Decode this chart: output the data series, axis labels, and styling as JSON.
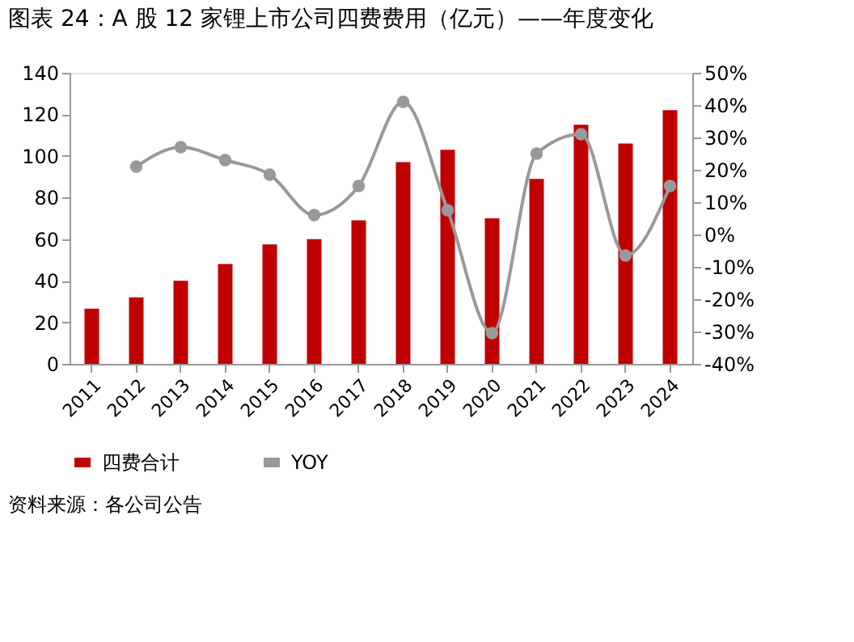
{
  "chart_data": {
    "type": "bar",
    "title": "图表 24：A 股 12 家锂上市公司四费费用（亿元）——年度变化",
    "categories": [
      "2011",
      "2012",
      "2013",
      "2014",
      "2015",
      "2016",
      "2017",
      "2018",
      "2019",
      "2020",
      "2021",
      "2022",
      "2023",
      "2024"
    ],
    "series": [
      {
        "name": "四费合计",
        "color": "#c00000",
        "values": [
          26.5,
          32,
          40,
          48,
          57.5,
          60,
          69,
          97,
          103,
          70,
          89,
          115,
          106,
          122
        ]
      },
      {
        "name": "YOY",
        "type": "line",
        "axis": "y2",
        "color": "#999999",
        "marker": "circle",
        "values": [
          null,
          21,
          27,
          23,
          18.5,
          6,
          15,
          41,
          7.5,
          -30.5,
          25,
          31,
          -6.5,
          15
        ]
      }
    ],
    "ylim": [
      0,
      140
    ],
    "yticks": [
      0,
      20,
      40,
      60,
      80,
      100,
      120,
      140
    ],
    "y2lim": [
      -40,
      50
    ],
    "y2ticks": [
      {
        "value": -40,
        "label": "-40%"
      },
      {
        "value": -30,
        "label": "-30%"
      },
      {
        "value": -20,
        "label": "-20%"
      },
      {
        "value": -10,
        "label": "-10%"
      },
      {
        "value": 0,
        "label": "0%"
      },
      {
        "value": 10,
        "label": "10%"
      },
      {
        "value": 20,
        "label": "20%"
      },
      {
        "value": 30,
        "label": "30%"
      },
      {
        "value": 40,
        "label": "40%"
      },
      {
        "value": 50,
        "label": "50%"
      }
    ],
    "grid": false,
    "legend": "bottom",
    "annotations": [
      "资料来源：各公司公告"
    ]
  }
}
